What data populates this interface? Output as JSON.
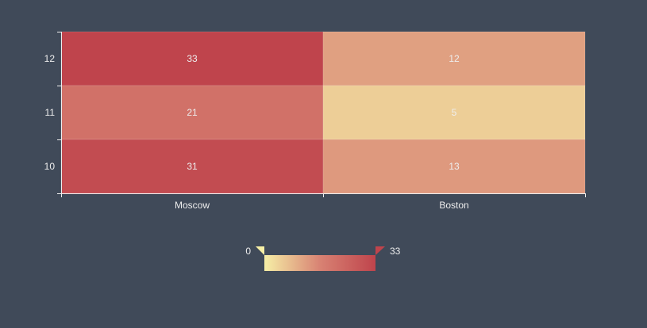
{
  "chart_data": {
    "type": "heatmap",
    "x_categories": [
      "Moscow",
      "Boston"
    ],
    "y_categories": [
      "10",
      "11",
      "12"
    ],
    "cells": [
      {
        "x": "Moscow",
        "y": "12",
        "value": 33
      },
      {
        "x": "Boston",
        "y": "12",
        "value": 12
      },
      {
        "x": "Moscow",
        "y": "11",
        "value": 21
      },
      {
        "x": "Boston",
        "y": "11",
        "value": 5
      },
      {
        "x": "Moscow",
        "y": "10",
        "value": 31
      },
      {
        "x": "Boston",
        "y": "10",
        "value": 13
      }
    ],
    "visual_map": {
      "min": 0,
      "max": 33,
      "min_label": "0",
      "max_label": "33",
      "colors": [
        "#f6efa6",
        "#d88273",
        "#bf444c"
      ]
    },
    "theme": {
      "background": "#404a59",
      "axis_color": "#eeeeee",
      "label_color": "#eeeeee"
    }
  }
}
